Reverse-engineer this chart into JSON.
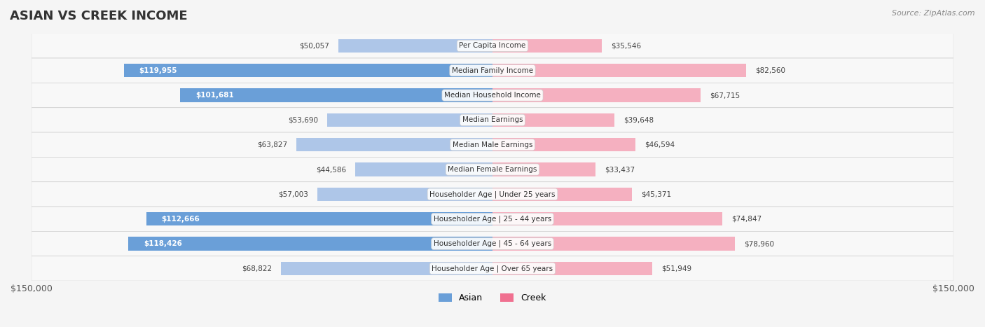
{
  "title": "ASIAN VS CREEK INCOME",
  "source": "Source: ZipAtlas.com",
  "max_val": 150000,
  "categories": [
    "Per Capita Income",
    "Median Family Income",
    "Median Household Income",
    "Median Earnings",
    "Median Male Earnings",
    "Median Female Earnings",
    "Householder Age | Under 25 years",
    "Householder Age | 25 - 44 years",
    "Householder Age | 45 - 64 years",
    "Householder Age | Over 65 years"
  ],
  "asian_values": [
    50057,
    119955,
    101681,
    53690,
    63827,
    44586,
    57003,
    112666,
    118426,
    68822
  ],
  "creek_values": [
    35546,
    82560,
    67715,
    39648,
    46594,
    33437,
    45371,
    74847,
    78960,
    51949
  ],
  "asian_labels": [
    "$50,057",
    "$119,955",
    "$101,681",
    "$53,690",
    "$63,827",
    "$44,586",
    "$57,003",
    "$112,666",
    "$118,426",
    "$68,822"
  ],
  "creek_labels": [
    "$35,546",
    "$82,560",
    "$67,715",
    "$39,648",
    "$46,594",
    "$33,437",
    "$45,371",
    "$74,847",
    "$78,960",
    "$51,949"
  ],
  "asian_color_dark": "#6a9fd8",
  "asian_color_light": "#aec6e8",
  "creek_color_dark": "#f07090",
  "creek_color_light": "#f5b0c0",
  "bg_color": "#f5f5f5",
  "row_bg": "#ffffff",
  "row_alt_bg": "#f0f0f0",
  "label_threshold": 90000,
  "bar_height": 0.55
}
